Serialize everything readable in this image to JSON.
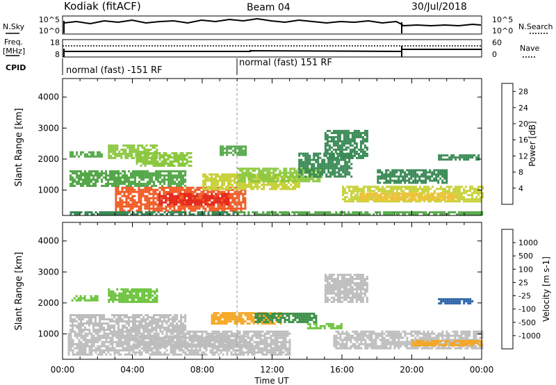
{
  "header": {
    "station": "Kodiak (fitACF)",
    "beam": "Beam 04",
    "date": "30/Jul/2018"
  },
  "noise_panel": {
    "left_label": "N.Sky",
    "right_label": "N.Search",
    "left_ticks": [
      "10^5",
      "10^0"
    ],
    "right_ticks": [
      "10^5",
      "10^0"
    ]
  },
  "freq_panel": {
    "left_label_line1": "Freq.",
    "left_label_line2": "[MHz]",
    "right_label": "Nave",
    "left_ticks": [
      "18",
      "8"
    ],
    "right_ticks": [
      "60",
      "0"
    ]
  },
  "cpid_panel": {
    "label": "CPID",
    "modes": [
      {
        "text": "normal (fast) -151 RF",
        "start": "00:00",
        "end": "10:00"
      },
      {
        "text": "normal (fast) 151 RF",
        "start": "10:00",
        "end": "24:00"
      }
    ]
  },
  "chart_data": [
    {
      "type": "heatmap",
      "title": "",
      "ylabel": "Slant Range [km]",
      "xlabel": "",
      "x_range_hours": [
        0,
        24
      ],
      "ylim": [
        180,
        4600
      ],
      "yticks": [
        "1000",
        "2000",
        "3000",
        "4000"
      ],
      "colorbar": {
        "label": "Power [dB]",
        "ticks": [
          "4",
          "8",
          "12",
          "16",
          "20",
          "24",
          "28"
        ],
        "range": [
          0,
          30
        ],
        "colors": [
          "#1a2bff",
          "#2d58b8",
          "#3a8a56",
          "#55a84a",
          "#8bc83f",
          "#c8d23c",
          "#f0c23a",
          "#f08a2a",
          "#f05820",
          "#e32418"
        ]
      },
      "regions": [
        {
          "t0": 0.4,
          "t1": 7.0,
          "r0": 1100,
          "r1": 1600,
          "level": 11
        },
        {
          "t0": 0.4,
          "t1": 2.2,
          "r0": 2050,
          "r1": 2250,
          "level": 9
        },
        {
          "t0": 2.6,
          "t1": 5.4,
          "r0": 2000,
          "r1": 2450,
          "level": 12
        },
        {
          "t0": 4.2,
          "t1": 7.4,
          "r0": 1750,
          "r1": 2200,
          "level": 13
        },
        {
          "t0": 3.0,
          "t1": 10.5,
          "r0": 300,
          "r1": 1050,
          "level": 24
        },
        {
          "t0": 5.5,
          "t1": 9.5,
          "r0": 500,
          "r1": 900,
          "level": 28
        },
        {
          "t0": 0.3,
          "t1": 10.0,
          "r0": 180,
          "r1": 300,
          "level": 8
        },
        {
          "t0": 8.0,
          "t1": 13.5,
          "r0": 1000,
          "r1": 1500,
          "level": 17
        },
        {
          "t0": 10.0,
          "t1": 14.8,
          "r0": 1250,
          "r1": 1700,
          "level": 14
        },
        {
          "t0": 9.0,
          "t1": 10.5,
          "r0": 2100,
          "r1": 2400,
          "level": 10
        },
        {
          "t0": 13.5,
          "t1": 16.5,
          "r0": 1400,
          "r1": 2200,
          "level": 7
        },
        {
          "t0": 15.0,
          "t1": 17.5,
          "r0": 2000,
          "r1": 2900,
          "level": 6
        },
        {
          "t0": 16.0,
          "t1": 24.0,
          "r0": 600,
          "r1": 1100,
          "level": 15
        },
        {
          "t0": 17.0,
          "t1": 22.5,
          "r0": 650,
          "r1": 900,
          "level": 20
        },
        {
          "t0": 18.0,
          "t1": 22.0,
          "r0": 1200,
          "r1": 1650,
          "level": 7
        },
        {
          "t0": 21.5,
          "t1": 23.8,
          "r0": 1950,
          "r1": 2150,
          "level": 8
        },
        {
          "t0": 10.0,
          "t1": 24.0,
          "r0": 180,
          "r1": 300,
          "level": 9
        }
      ]
    },
    {
      "type": "heatmap",
      "title": "",
      "ylabel": "Slant Range [km]",
      "xlabel": "Time UT",
      "x_range_hours": [
        0,
        24
      ],
      "xticks": [
        "00:00",
        "04:00",
        "08:00",
        "12:00",
        "16:00",
        "20:00",
        "00:00"
      ],
      "ylim": [
        180,
        4600
      ],
      "yticks": [
        "1000",
        "2000",
        "3000",
        "4000"
      ],
      "colorbar": {
        "label": "Velocity [m s-1]",
        "ticks": [
          "1000",
          "500",
          "100",
          "25",
          "-25",
          "-100",
          "-500",
          "-1000"
        ],
        "colors": [
          "#2a3fd0",
          "#2e64a8",
          "#3b8f47",
          "#6ac23a",
          "#bdbdbd",
          "#bdbdbd",
          "#f5a623",
          "#f07a1a",
          "#e54a18",
          "#e41a1a"
        ]
      },
      "regions": [
        {
          "t0": 0.4,
          "t1": 7.0,
          "r0": 1100,
          "r1": 1600,
          "level": 4
        },
        {
          "t0": 0.5,
          "t1": 2.0,
          "r0": 2050,
          "r1": 2250,
          "level": 3
        },
        {
          "t0": 2.6,
          "t1": 5.4,
          "r0": 2000,
          "r1": 2450,
          "level": 3
        },
        {
          "t0": 0.3,
          "t1": 13.0,
          "r0": 300,
          "r1": 1050,
          "level": 5
        },
        {
          "t0": 4.0,
          "t1": 10.5,
          "r0": 550,
          "r1": 900,
          "level": 4
        },
        {
          "t0": 8.5,
          "t1": 12.5,
          "r0": 1300,
          "r1": 1700,
          "level": 6
        },
        {
          "t0": 11.0,
          "t1": 14.5,
          "r0": 1350,
          "r1": 1650,
          "level": 2
        },
        {
          "t0": 14.0,
          "t1": 16.0,
          "r0": 1150,
          "r1": 1350,
          "level": 3
        },
        {
          "t0": 15.5,
          "t1": 24.0,
          "r0": 500,
          "r1": 1100,
          "level": 5
        },
        {
          "t0": 20.0,
          "t1": 24.0,
          "r0": 600,
          "r1": 800,
          "level": 6
        },
        {
          "t0": 15.0,
          "t1": 17.5,
          "r0": 2000,
          "r1": 2900,
          "level": 5
        },
        {
          "t0": 21.5,
          "t1": 23.5,
          "r0": 1950,
          "r1": 2150,
          "level": 1
        }
      ]
    }
  ]
}
